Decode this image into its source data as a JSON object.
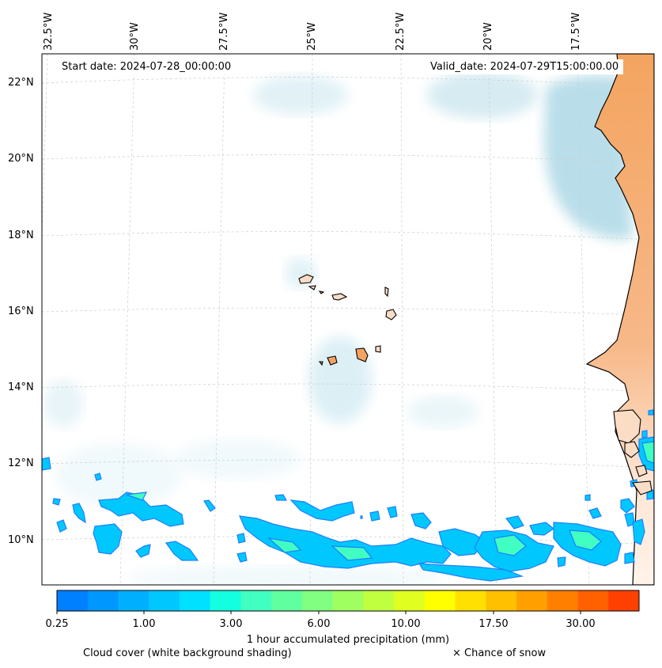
{
  "map": {
    "lon_labels": [
      "32.5°W",
      "30°W",
      "27.5°W",
      "25°W",
      "22.5°W",
      "20°W",
      "17.5°W"
    ],
    "lat_labels": [
      "22°N",
      "20°N",
      "18°N",
      "16°N",
      "14°N",
      "12°N",
      "10°N"
    ],
    "start_date": "Start date: 2024-07-28_00:00:00",
    "valid_date": "Valid_date: 2024-07-29T15:00:00.00"
  },
  "colorbar": {
    "title": "1 hour accumulated precipitation (mm)",
    "ticks": [
      "0.25",
      "1.00",
      "3.00",
      "6.00",
      "10.00",
      "17.50",
      "30.00"
    ],
    "colors": [
      "#0080ff",
      "#0098ff",
      "#00b0ff",
      "#00c8ff",
      "#00e0ff",
      "#14ffe0",
      "#40ffc0",
      "#60ffa0",
      "#80ff80",
      "#a0ff60",
      "#c0ff40",
      "#e0ff20",
      "#ffff00",
      "#ffe000",
      "#ffc000",
      "#ffa000",
      "#ff8000",
      "#ff6000",
      "#ff4000"
    ]
  },
  "legend": {
    "cloud_cover": "Cloud cover (white background shading)",
    "snow": "× Chance of snow"
  },
  "colors": {
    "land": "#f4a460",
    "cloud": "#add8e6",
    "precip_light": "#00c8ff",
    "precip_mid": "#40ffc0"
  }
}
